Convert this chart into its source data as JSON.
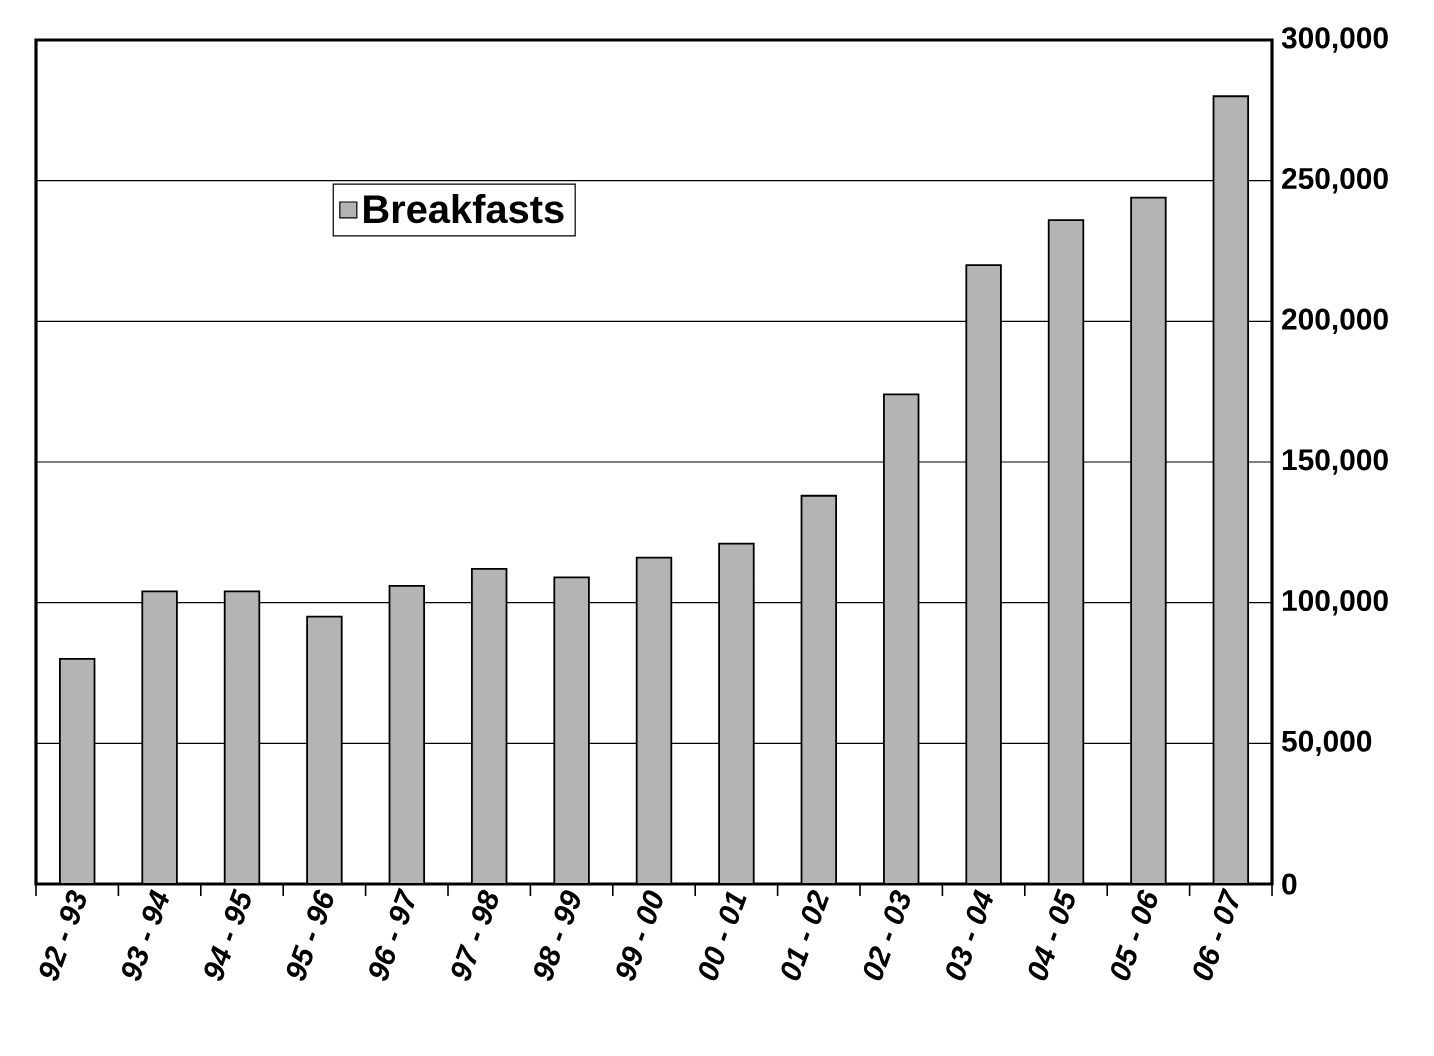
{
  "chart_data": {
    "type": "bar",
    "categories": [
      "92 - 93",
      "93 - 94",
      "94 - 95",
      "95 - 96",
      "96 - 97",
      "97 - 98",
      "98 - 99",
      "99 - 00",
      "00 - 01",
      "01 - 02",
      "02 - 03",
      "03 - 04",
      "04 - 05",
      "05 - 06",
      "06 - 07"
    ],
    "series": [
      {
        "name": "Breakfasts",
        "color": "#b4b4b4",
        "values": [
          80000,
          104000,
          104000,
          95000,
          106000,
          112000,
          109000,
          116000,
          121000,
          138000,
          174000,
          220000,
          236000,
          244000,
          280000
        ]
      }
    ],
    "ylim": [
      0,
      300000
    ],
    "yticks": [
      0,
      {
        "value": 50000,
        "label": "50,000"
      },
      {
        "value": 100000,
        "label": "100,000"
      },
      {
        "value": 150000,
        "label": "150,000"
      },
      {
        "value": 200000,
        "label": "200,000"
      },
      {
        "value": 250000,
        "label": "250,000"
      },
      {
        "value": 300000,
        "label": "300,000"
      }
    ],
    "grid": "y",
    "legend": "top left"
  }
}
